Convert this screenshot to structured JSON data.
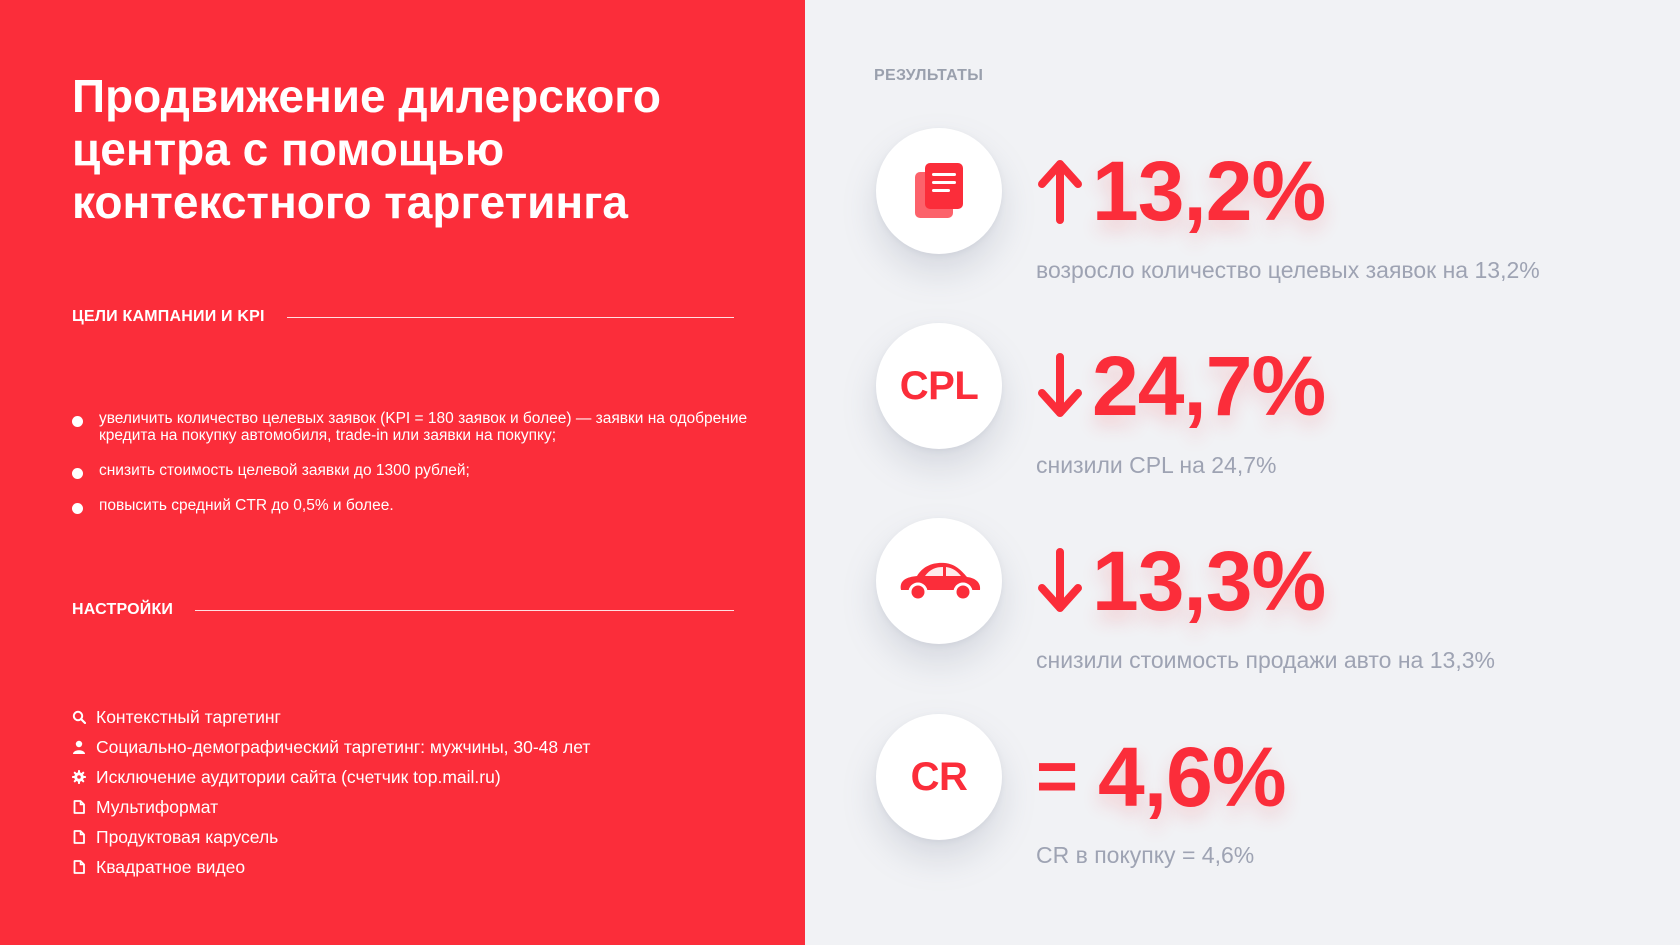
{
  "colors": {
    "accent": "#fb2d3a",
    "caption": "#9ea3b3",
    "muted_label": "#9aa0ad"
  },
  "title_lines": [
    "Продвижение дилерского",
    "центра с помощью",
    "контекстного таргетинга"
  ],
  "goals": {
    "heading": "ЦЕЛИ КАМПАНИИ И KPI",
    "items": [
      "увеличить количество целевых заявок (KPI = 180 заявок и более) — заявки на одобрение кредита на покупку автомобиля, trade-in или заявки на покупку;",
      "снизить стоимость целевой заявки до 1300 рублей;",
      "повысить средний CTR до 0,5% и более."
    ]
  },
  "settings": {
    "heading": "НАСТРОЙКИ",
    "items": [
      {
        "icon": "search-icon",
        "text": "Контекстный таргетинг"
      },
      {
        "icon": "user-icon",
        "text": "Социально-демографический таргетинг: мужчины, 30-48 лет"
      },
      {
        "icon": "gear-icon",
        "text": "Исключение аудитории сайта (счетчик top.mail.ru)"
      },
      {
        "icon": "document-icon",
        "text": "Мультиформат"
      },
      {
        "icon": "document-icon",
        "text": "Продуктовая карусель"
      },
      {
        "icon": "document-icon",
        "text": "Квадратное видео"
      }
    ]
  },
  "results": {
    "heading": "РЕЗУЛЬТАТЫ",
    "items": [
      {
        "icon": "documents-icon",
        "badge_text": "",
        "direction": "up",
        "value": "13,2%",
        "caption": "возросло количество целевых заявок на 13,2%"
      },
      {
        "icon": "",
        "badge_text": "CPL",
        "direction": "down",
        "value": "24,7%",
        "caption": "снизили CPL на 24,7%"
      },
      {
        "icon": "car-icon",
        "badge_text": "",
        "direction": "down",
        "value": "13,3%",
        "caption": "снизили стоимость продажи авто на 13,3%"
      },
      {
        "icon": "",
        "badge_text": "CR",
        "direction": "equal",
        "eq_symbol": "=",
        "value": "4,6%",
        "caption": "CR в покупку = 4,6%"
      }
    ]
  }
}
